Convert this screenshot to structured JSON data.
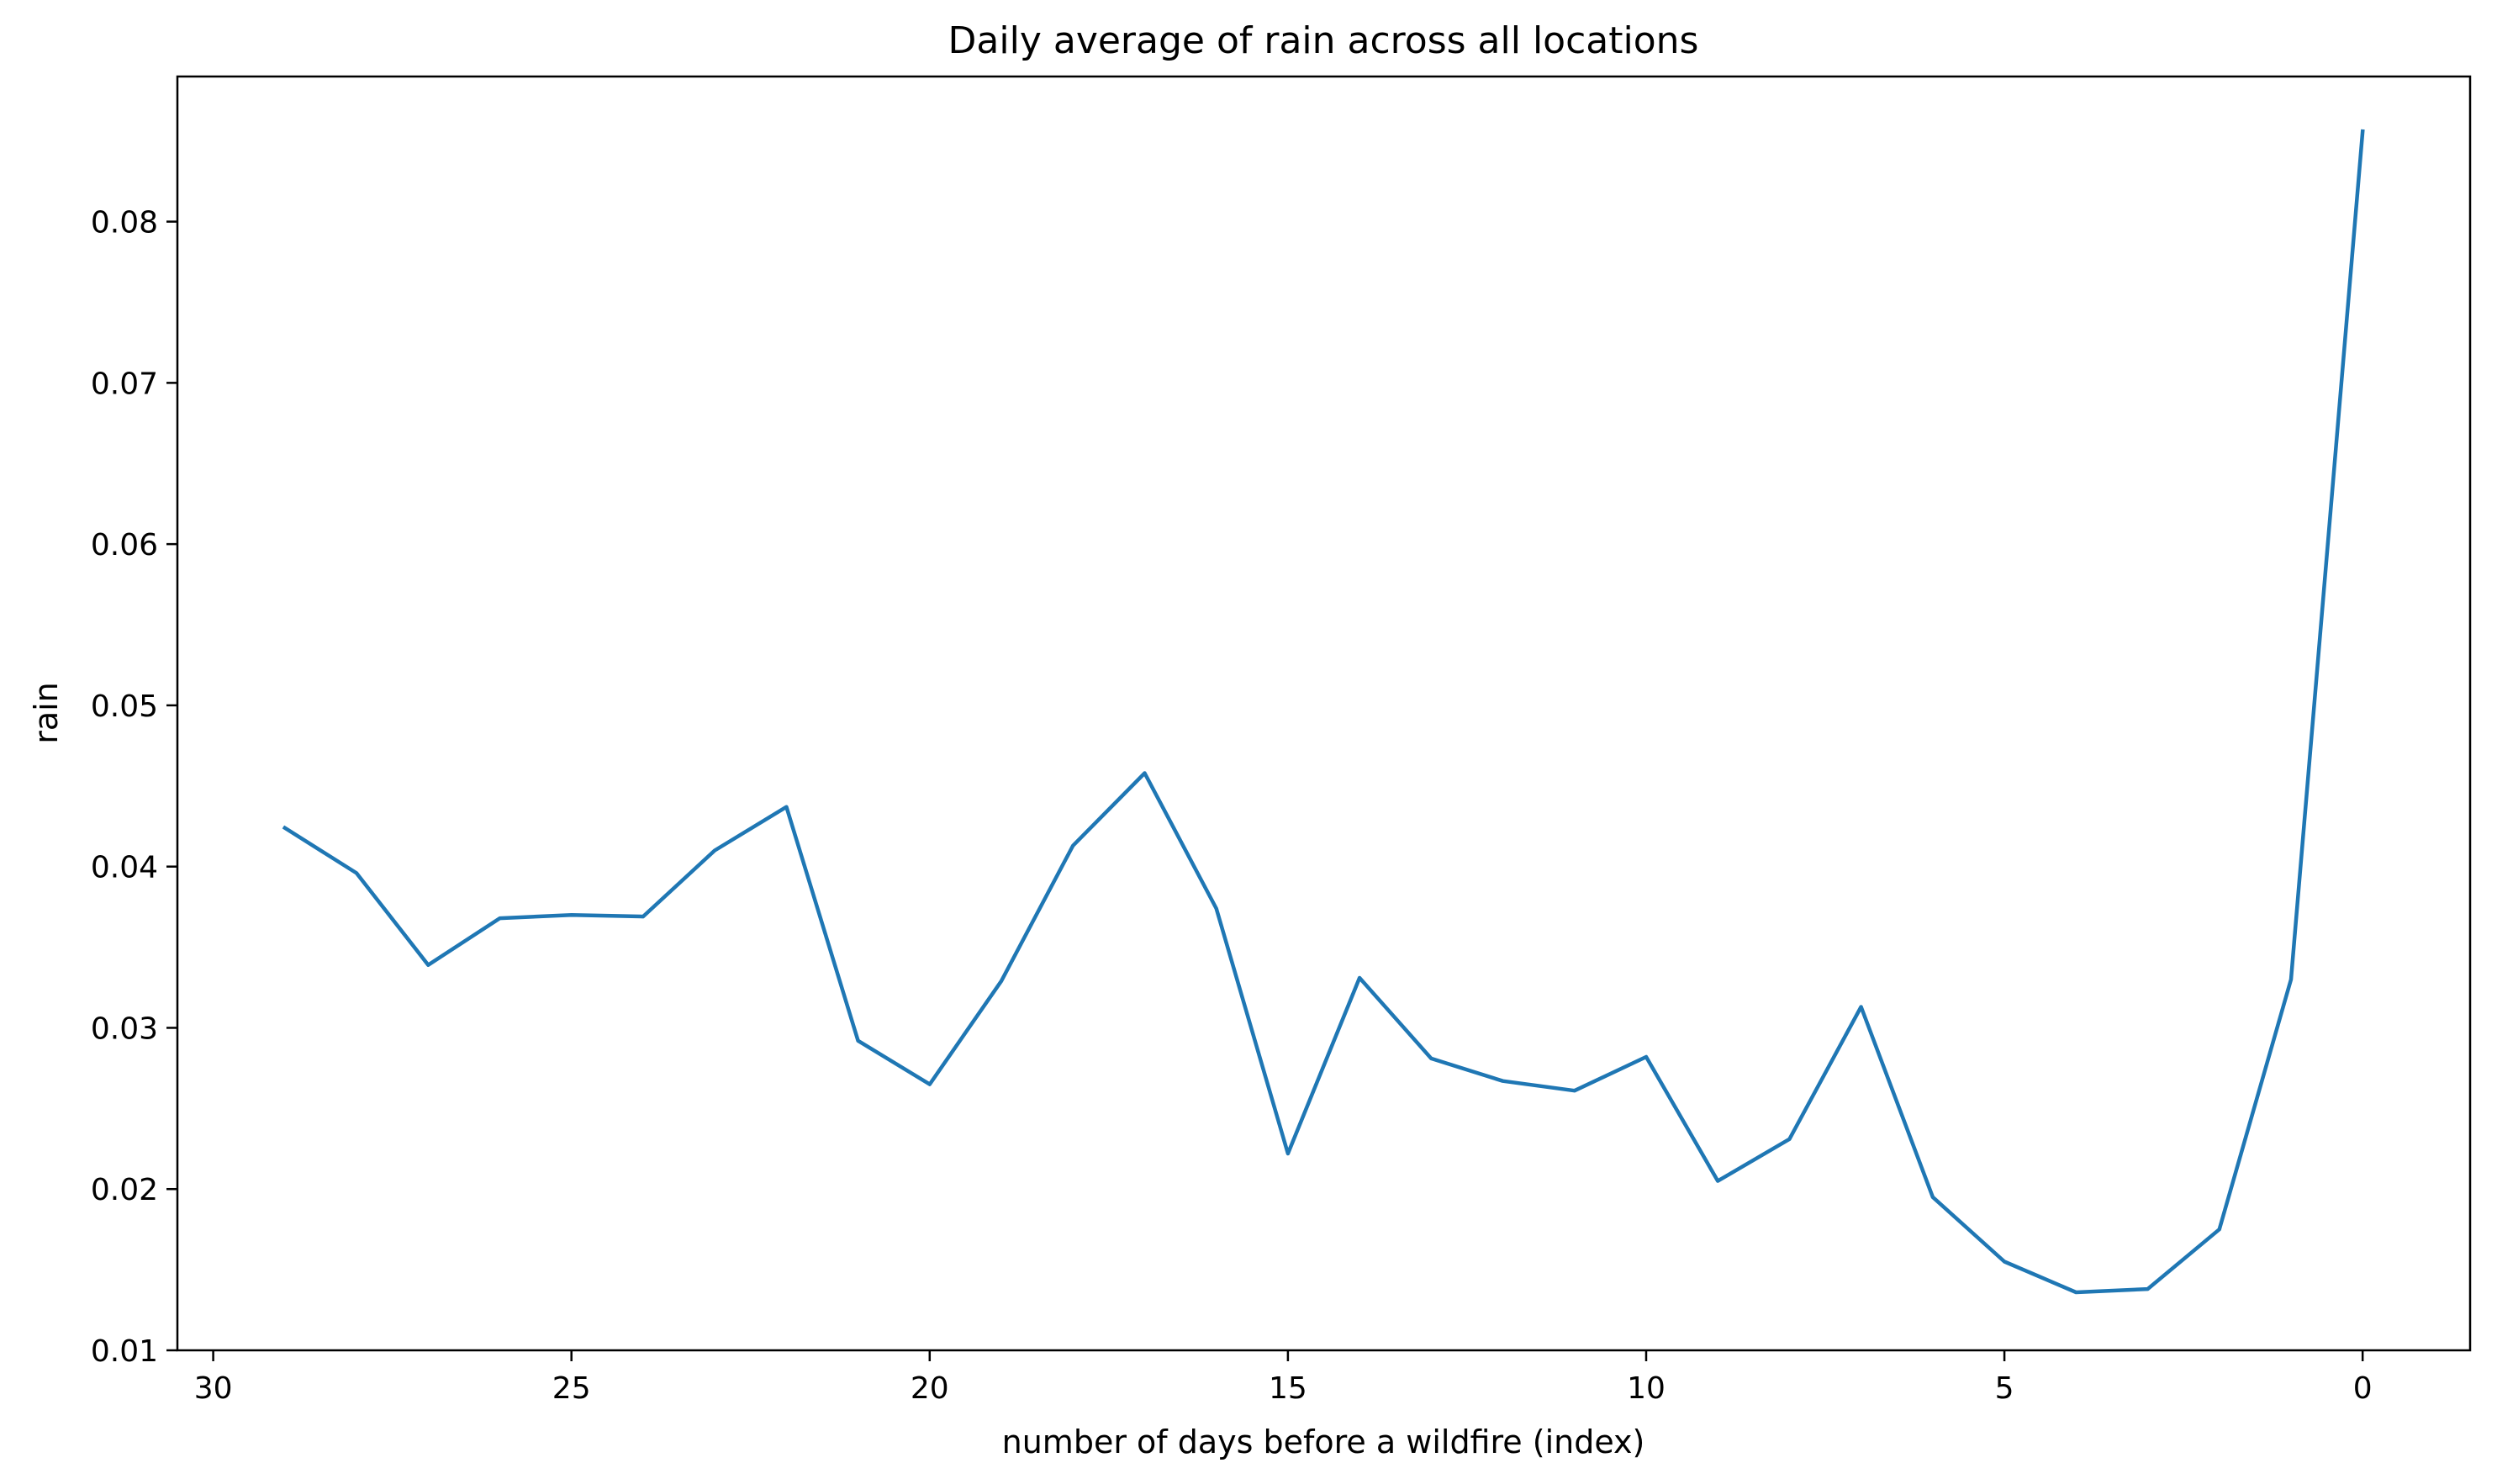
{
  "chart_data": {
    "type": "line",
    "title": "Daily average of rain across all locations",
    "xlabel": "number of days before a wildfire (index)",
    "ylabel": "rain",
    "xlim": [
      30.5,
      -1.5
    ],
    "ylim": [
      0.01,
      0.089
    ],
    "x_inverted": true,
    "grid": false,
    "x_ticks": [
      {
        "value": 30,
        "label": "30"
      },
      {
        "value": 25,
        "label": "25"
      },
      {
        "value": 20,
        "label": "20"
      },
      {
        "value": 15,
        "label": "15"
      },
      {
        "value": 10,
        "label": "10"
      },
      {
        "value": 5,
        "label": "5"
      },
      {
        "value": 0,
        "label": "0"
      }
    ],
    "y_ticks": [
      {
        "value": 0.01,
        "label": "0.01"
      },
      {
        "value": 0.02,
        "label": "0.02"
      },
      {
        "value": 0.03,
        "label": "0.03"
      },
      {
        "value": 0.04,
        "label": "0.04"
      },
      {
        "value": 0.05,
        "label": "0.05"
      },
      {
        "value": 0.06,
        "label": "0.06"
      },
      {
        "value": 0.07,
        "label": "0.07"
      },
      {
        "value": 0.08,
        "label": "0.08"
      }
    ],
    "series": [
      {
        "color": "#1f77b4",
        "x": [
          29,
          28,
          27,
          26,
          25,
          24,
          23,
          22,
          21,
          20,
          19,
          18,
          17,
          16,
          15,
          14,
          13,
          12,
          11,
          10,
          9,
          8,
          7,
          6,
          5,
          4,
          3,
          2,
          1,
          0
        ],
        "values": [
          0.0424,
          0.0396,
          0.0339,
          0.0368,
          0.037,
          0.0369,
          0.041,
          0.0437,
          0.0292,
          0.0265,
          0.0329,
          0.0413,
          0.0458,
          0.0374,
          0.0222,
          0.0331,
          0.0281,
          0.0267,
          0.0261,
          0.0282,
          0.0205,
          0.0231,
          0.0313,
          0.0195,
          0.0155,
          0.0136,
          0.0138,
          0.0175,
          0.033,
          0.0856
        ]
      }
    ]
  }
}
